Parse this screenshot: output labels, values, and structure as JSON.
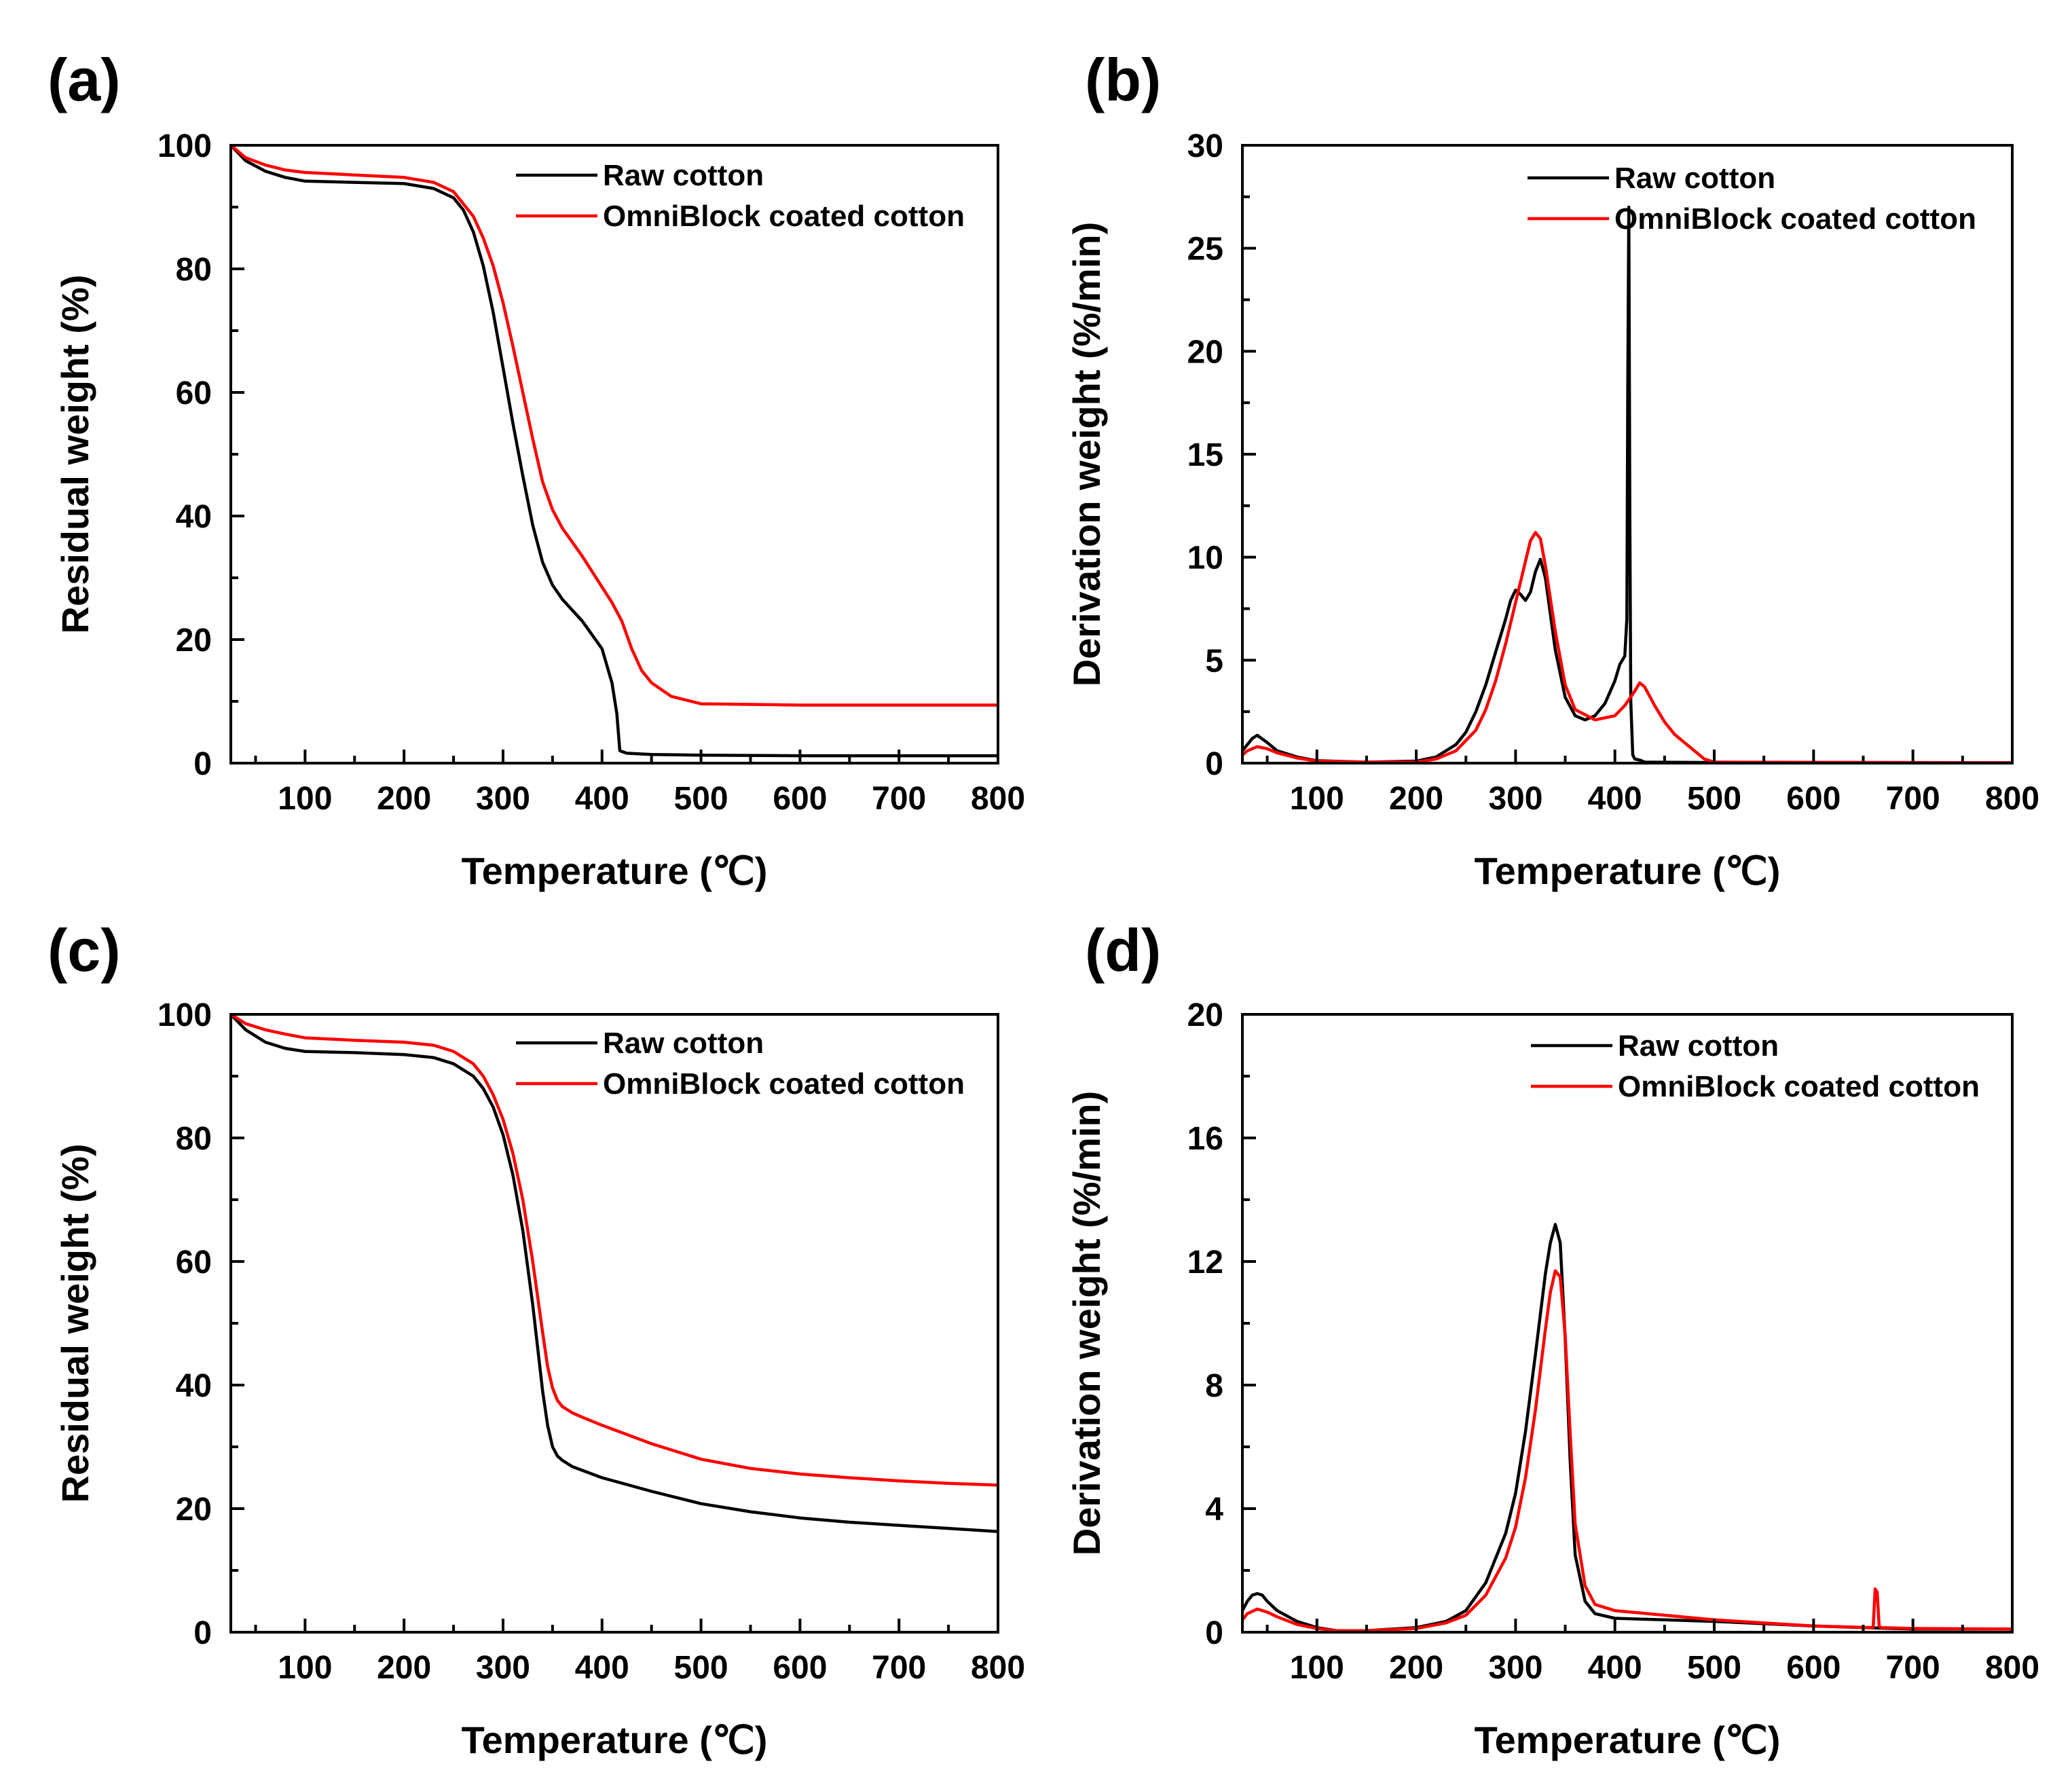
{
  "colors": {
    "raw": "#000000",
    "coated": "#ff0000"
  },
  "chart_data": [
    {
      "panel": "(a)",
      "type": "line",
      "xlabel": "Temperature (℃)",
      "ylabel": "Residual weight (%)",
      "xlim": [
        25,
        800
      ],
      "ylim": [
        0,
        100
      ],
      "xticks": [
        100,
        200,
        300,
        400,
        500,
        600,
        700,
        800
      ],
      "yticks": [
        0,
        20,
        40,
        60,
        80,
        100
      ],
      "xtick_labels": [
        "100",
        "200",
        "300",
        "400",
        "500",
        "600",
        "700",
        "800"
      ],
      "ytick_labels": [
        "0",
        "20",
        "40",
        "60",
        "80",
        "100"
      ],
      "legend": [
        "Raw cotton",
        "OmniBlock coated cotton"
      ],
      "series": [
        {
          "name": "Raw cotton",
          "color": "#000000",
          "x": [
            25,
            40,
            60,
            80,
            100,
            150,
            200,
            230,
            250,
            260,
            270,
            280,
            290,
            300,
            310,
            320,
            330,
            340,
            350,
            360,
            380,
            400,
            410,
            415,
            418,
            425,
            450,
            500,
            600,
            700,
            800
          ],
          "y": [
            100,
            97.5,
            95.8,
            94.8,
            94.2,
            94.0,
            93.8,
            93.0,
            91.5,
            89.5,
            86.0,
            80.5,
            73.0,
            64.0,
            55.0,
            46.5,
            38.5,
            32.5,
            28.8,
            26.5,
            23.0,
            18.5,
            13.0,
            8.0,
            2.0,
            1.6,
            1.4,
            1.3,
            1.2,
            1.2,
            1.2
          ]
        },
        {
          "name": "OmniBlock coated cotton",
          "color": "#ff0000",
          "x": [
            25,
            40,
            60,
            80,
            100,
            150,
            200,
            230,
            250,
            270,
            280,
            290,
            300,
            310,
            320,
            330,
            340,
            350,
            360,
            380,
            400,
            410,
            420,
            430,
            440,
            450,
            470,
            500,
            550,
            600,
            700,
            800
          ],
          "y": [
            100,
            98.0,
            96.8,
            96.0,
            95.6,
            95.2,
            94.8,
            94.0,
            92.5,
            88.5,
            85.0,
            80.5,
            74.5,
            67.5,
            60.0,
            52.5,
            45.5,
            41.0,
            38.0,
            33.5,
            28.5,
            26.0,
            23.0,
            18.5,
            15.0,
            13.0,
            10.8,
            9.6,
            9.5,
            9.4,
            9.4,
            9.4
          ]
        }
      ]
    },
    {
      "panel": "(b)",
      "type": "line",
      "xlabel": "Temperature (℃)",
      "ylabel": "Derivation weight (%/min)",
      "xlim": [
        25,
        800
      ],
      "ylim": [
        0,
        30
      ],
      "xticks": [
        100,
        200,
        300,
        400,
        500,
        600,
        700,
        800
      ],
      "yticks": [
        0,
        5,
        10,
        15,
        20,
        25,
        30
      ],
      "xtick_labels": [
        "100",
        "200",
        "300",
        "400",
        "500",
        "600",
        "700",
        "800"
      ],
      "ytick_labels": [
        "0",
        "5",
        "10",
        "15",
        "20",
        "25",
        "30"
      ],
      "legend": [
        "Raw cotton",
        "OmniBlock coated cotton"
      ],
      "series": [
        {
          "name": "Raw cotton",
          "color": "#000000",
          "x": [
            25,
            30,
            35,
            40,
            50,
            60,
            80,
            100,
            150,
            200,
            220,
            240,
            250,
            260,
            270,
            280,
            290,
            295,
            300,
            305,
            310,
            315,
            320,
            325,
            330,
            340,
            350,
            360,
            370,
            380,
            390,
            400,
            405,
            410,
            412,
            413,
            414,
            415,
            416,
            418,
            420,
            425,
            430,
            500,
            800
          ],
          "y": [
            0.6,
            0.9,
            1.2,
            1.35,
            1.0,
            0.6,
            0.3,
            0.12,
            0.05,
            0.1,
            0.3,
            0.9,
            1.5,
            2.5,
            3.8,
            5.4,
            7.0,
            7.9,
            8.4,
            8.2,
            7.9,
            8.3,
            9.3,
            9.9,
            9.0,
            5.5,
            3.2,
            2.3,
            2.1,
            2.3,
            2.9,
            4.0,
            4.8,
            5.2,
            7.0,
            18.5,
            27.0,
            12.0,
            3.0,
            0.4,
            0.2,
            0.15,
            0.05,
            0.03,
            0.02
          ]
        },
        {
          "name": "OmniBlock coated cotton",
          "color": "#ff0000",
          "x": [
            25,
            30,
            40,
            50,
            60,
            80,
            100,
            150,
            200,
            220,
            240,
            260,
            270,
            280,
            290,
            300,
            310,
            315,
            320,
            325,
            330,
            340,
            350,
            360,
            380,
            400,
            410,
            420,
            425,
            430,
            440,
            450,
            460,
            470,
            480,
            490,
            500,
            800
          ],
          "y": [
            0.4,
            0.6,
            0.8,
            0.7,
            0.5,
            0.25,
            0.1,
            0.05,
            0.05,
            0.2,
            0.6,
            1.6,
            2.6,
            4.0,
            5.8,
            7.8,
            9.8,
            10.8,
            11.2,
            10.9,
            9.6,
            6.4,
            3.8,
            2.6,
            2.1,
            2.3,
            2.8,
            3.5,
            3.9,
            3.7,
            2.8,
            2.0,
            1.4,
            1.0,
            0.6,
            0.2,
            0.05,
            0.02
          ]
        }
      ]
    },
    {
      "panel": "(c)",
      "type": "line",
      "xlabel": "Temperature (℃)",
      "ylabel": "Residual weight (%)",
      "xlim": [
        25,
        800
      ],
      "ylim": [
        0,
        100
      ],
      "xticks": [
        100,
        200,
        300,
        400,
        500,
        600,
        700,
        800
      ],
      "yticks": [
        0,
        20,
        40,
        60,
        80,
        100
      ],
      "xtick_labels": [
        "100",
        "200",
        "300",
        "400",
        "500",
        "600",
        "700",
        "800"
      ],
      "ytick_labels": [
        "0",
        "20",
        "40",
        "60",
        "80",
        "100"
      ],
      "legend": [
        "Raw cotton",
        "OmniBlock coated cotton"
      ],
      "series": [
        {
          "name": "Raw cotton",
          "color": "#000000",
          "x": [
            25,
            40,
            60,
            80,
            100,
            150,
            200,
            230,
            250,
            270,
            280,
            290,
            300,
            310,
            320,
            330,
            335,
            340,
            345,
            350,
            355,
            360,
            370,
            400,
            450,
            500,
            550,
            600,
            650,
            700,
            750,
            800
          ],
          "y": [
            100,
            97.5,
            95.5,
            94.5,
            94.0,
            93.8,
            93.5,
            93.0,
            92.0,
            90.0,
            88.0,
            85.0,
            80.5,
            74.0,
            65.0,
            53.0,
            46.0,
            39.0,
            33.5,
            30.0,
            28.5,
            27.8,
            26.8,
            25.0,
            22.8,
            20.8,
            19.5,
            18.5,
            17.8,
            17.3,
            16.8,
            16.3
          ]
        },
        {
          "name": "OmniBlock coated cotton",
          "color": "#ff0000",
          "x": [
            25,
            40,
            60,
            80,
            100,
            150,
            200,
            230,
            250,
            270,
            280,
            290,
            300,
            310,
            320,
            330,
            340,
            345,
            350,
            355,
            360,
            370,
            380,
            400,
            450,
            500,
            550,
            600,
            650,
            700,
            750,
            800
          ],
          "y": [
            100,
            98.5,
            97.5,
            96.8,
            96.2,
            95.8,
            95.5,
            95.0,
            94.0,
            92.0,
            90.0,
            87.0,
            83.0,
            77.5,
            70.0,
            60.0,
            48.5,
            43.0,
            39.5,
            37.5,
            36.5,
            35.5,
            34.8,
            33.5,
            30.5,
            28.0,
            26.5,
            25.6,
            25.0,
            24.5,
            24.1,
            23.8
          ]
        }
      ]
    },
    {
      "panel": "(d)",
      "type": "line",
      "xlabel": "Temperature (℃)",
      "ylabel": "Derivation weight (%/min)",
      "xlim": [
        25,
        800
      ],
      "ylim": [
        0,
        20
      ],
      "xticks": [
        100,
        200,
        300,
        400,
        500,
        600,
        700,
        800
      ],
      "yticks": [
        0,
        4,
        8,
        12,
        16,
        20
      ],
      "xtick_labels": [
        "100",
        "200",
        "300",
        "400",
        "500",
        "600",
        "700",
        "800"
      ],
      "ytick_labels": [
        "0",
        "4",
        "8",
        "12",
        "16",
        "20"
      ],
      "legend": [
        "Raw cotton",
        "OmniBlock coated cotton"
      ],
      "series": [
        {
          "name": "Raw cotton",
          "color": "#000000",
          "x": [
            25,
            30,
            35,
            40,
            45,
            50,
            60,
            80,
            100,
            120,
            150,
            200,
            230,
            250,
            270,
            290,
            300,
            310,
            320,
            330,
            335,
            340,
            345,
            350,
            355,
            360,
            370,
            380,
            400,
            450,
            500,
            600,
            700,
            800
          ],
          "y": [
            0.7,
            1.0,
            1.2,
            1.25,
            1.2,
            1.0,
            0.7,
            0.35,
            0.15,
            0.05,
            0.05,
            0.15,
            0.35,
            0.7,
            1.6,
            3.2,
            4.5,
            6.5,
            9.0,
            11.6,
            12.6,
            13.2,
            12.6,
            9.5,
            5.5,
            2.5,
            1.0,
            0.6,
            0.45,
            0.4,
            0.35,
            0.2,
            0.1,
            0.1
          ]
        },
        {
          "name": "OmniBlock coated cotton",
          "color": "#ff0000",
          "x": [
            25,
            30,
            40,
            50,
            60,
            80,
            100,
            120,
            150,
            200,
            230,
            250,
            270,
            290,
            300,
            310,
            320,
            330,
            335,
            340,
            345,
            350,
            355,
            360,
            370,
            380,
            400,
            450,
            500,
            600,
            660,
            662,
            664,
            666,
            668,
            700,
            800
          ],
          "y": [
            0.4,
            0.6,
            0.75,
            0.65,
            0.5,
            0.25,
            0.12,
            0.05,
            0.05,
            0.12,
            0.3,
            0.55,
            1.2,
            2.4,
            3.4,
            5.0,
            7.2,
            9.8,
            11.0,
            11.7,
            11.5,
            9.6,
            6.4,
            3.5,
            1.5,
            0.9,
            0.7,
            0.55,
            0.4,
            0.2,
            0.15,
            1.4,
            1.3,
            0.2,
            0.15,
            0.12,
            0.1
          ]
        }
      ]
    }
  ]
}
